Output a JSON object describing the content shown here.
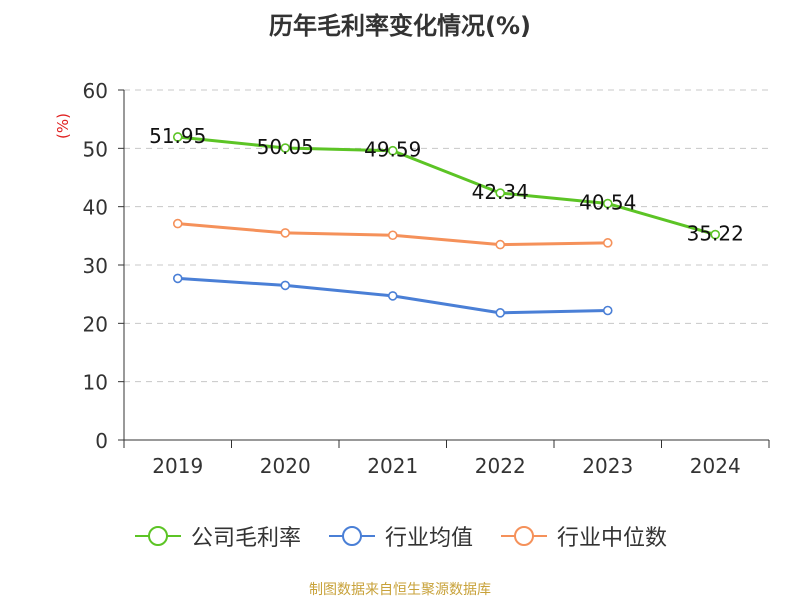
{
  "title": "历年毛利率变化情况(%)",
  "source": "制图数据来自恒生聚源数据库",
  "chart_data": {
    "type": "line",
    "title": "历年毛利率变化情况(%)",
    "ylabel": "(%)",
    "xlabel": "",
    "categories": [
      "2019",
      "2020",
      "2021",
      "2022",
      "2023",
      "2024"
    ],
    "ylim": [
      0,
      60
    ],
    "yticks": [
      0,
      10,
      20,
      30,
      40,
      50,
      60
    ],
    "grid": true,
    "legend": "bottom",
    "series": [
      {
        "name": "公司毛利率",
        "color": "#5cc425",
        "values": [
          51.95,
          50.05,
          49.59,
          42.34,
          40.54,
          35.22
        ],
        "labels": [
          "51.95",
          "50.05",
          "49.59",
          "42.34",
          "40.54",
          "35.22"
        ]
      },
      {
        "name": "行业均值",
        "color": "#4a7fd6",
        "values": [
          27.7,
          26.5,
          24.7,
          21.8,
          22.2,
          null
        ]
      },
      {
        "name": "行业中位数",
        "color": "#f5915a",
        "values": [
          37.1,
          35.5,
          35.1,
          33.5,
          33.8,
          null
        ]
      }
    ]
  }
}
